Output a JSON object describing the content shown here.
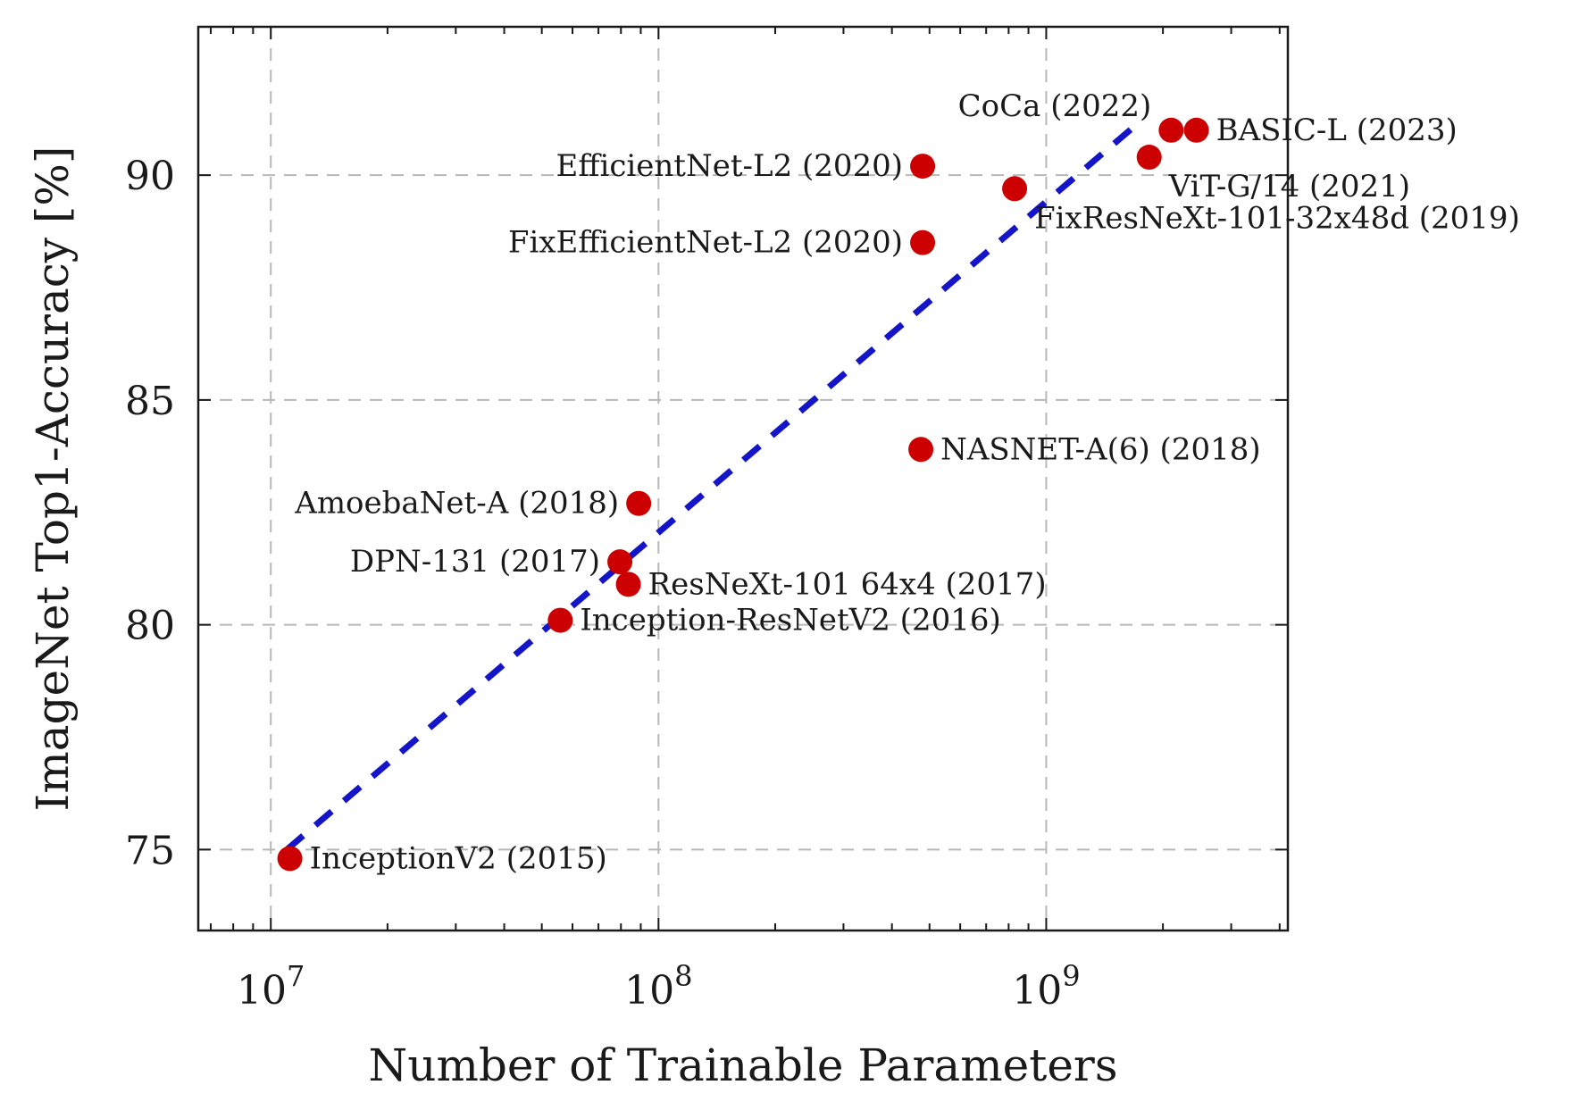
{
  "chart_data": {
    "type": "scatter",
    "title": "",
    "xlabel": "Number of Trainable Parameters",
    "ylabel": "ImageNet Top1-Accuracy [%]",
    "xscale": "log",
    "xlim": [
      6500000,
      4200000000
    ],
    "ylim": [
      73.2,
      93.3
    ],
    "x_ticks": [
      {
        "value": 10000000,
        "base": "10",
        "exp": "7"
      },
      {
        "value": 100000000,
        "base": "10",
        "exp": "8"
      },
      {
        "value": 1000000000,
        "base": "10",
        "exp": "9"
      }
    ],
    "y_ticks": [
      75,
      80,
      85,
      90
    ],
    "grid": true,
    "point_color": "#cc0000",
    "trend_color": "#1414c8",
    "trendline": {
      "from": {
        "x": 11000000,
        "y": 75.0
      },
      "to": {
        "x": 1750000000,
        "y": 91.2
      }
    },
    "points": [
      {
        "label": "InceptionV2 (2015)",
        "x": 11200000,
        "y": 74.8,
        "anchor": "right"
      },
      {
        "label": "Inception-ResNetV2 (2016)",
        "x": 55800000,
        "y": 80.1,
        "anchor": "right"
      },
      {
        "label": "ResNeXt-101 64x4 (2017)",
        "x": 83600000,
        "y": 80.9,
        "anchor": "right"
      },
      {
        "label": "DPN-131 (2017)",
        "x": 79500000,
        "y": 81.4,
        "anchor": "left"
      },
      {
        "label": "AmoebaNet-A (2018)",
        "x": 88900000,
        "y": 82.7,
        "anchor": "left"
      },
      {
        "label": "NASNET-A(6) (2018)",
        "x": 475000000,
        "y": 83.9,
        "anchor": "right"
      },
      {
        "label": "FixEfficientNet-L2 (2020)",
        "x": 480000000,
        "y": 88.5,
        "anchor": "left"
      },
      {
        "label": "EfficientNet-L2 (2020)",
        "x": 480000000,
        "y": 90.2,
        "anchor": "left"
      },
      {
        "label": "FixResNeXt-101-32x48d (2019)",
        "x": 829000000,
        "y": 89.7,
        "anchor": "below-right"
      },
      {
        "label": "ViT-G/14 (2021)",
        "x": 1843000000,
        "y": 90.4,
        "anchor": "below-right"
      },
      {
        "label": "CoCa (2022)",
        "x": 2100000000,
        "y": 91.0,
        "anchor": "above-left"
      },
      {
        "label": "BASIC-L (2023)",
        "x": 2440000000,
        "y": 91.0,
        "anchor": "right"
      }
    ]
  }
}
